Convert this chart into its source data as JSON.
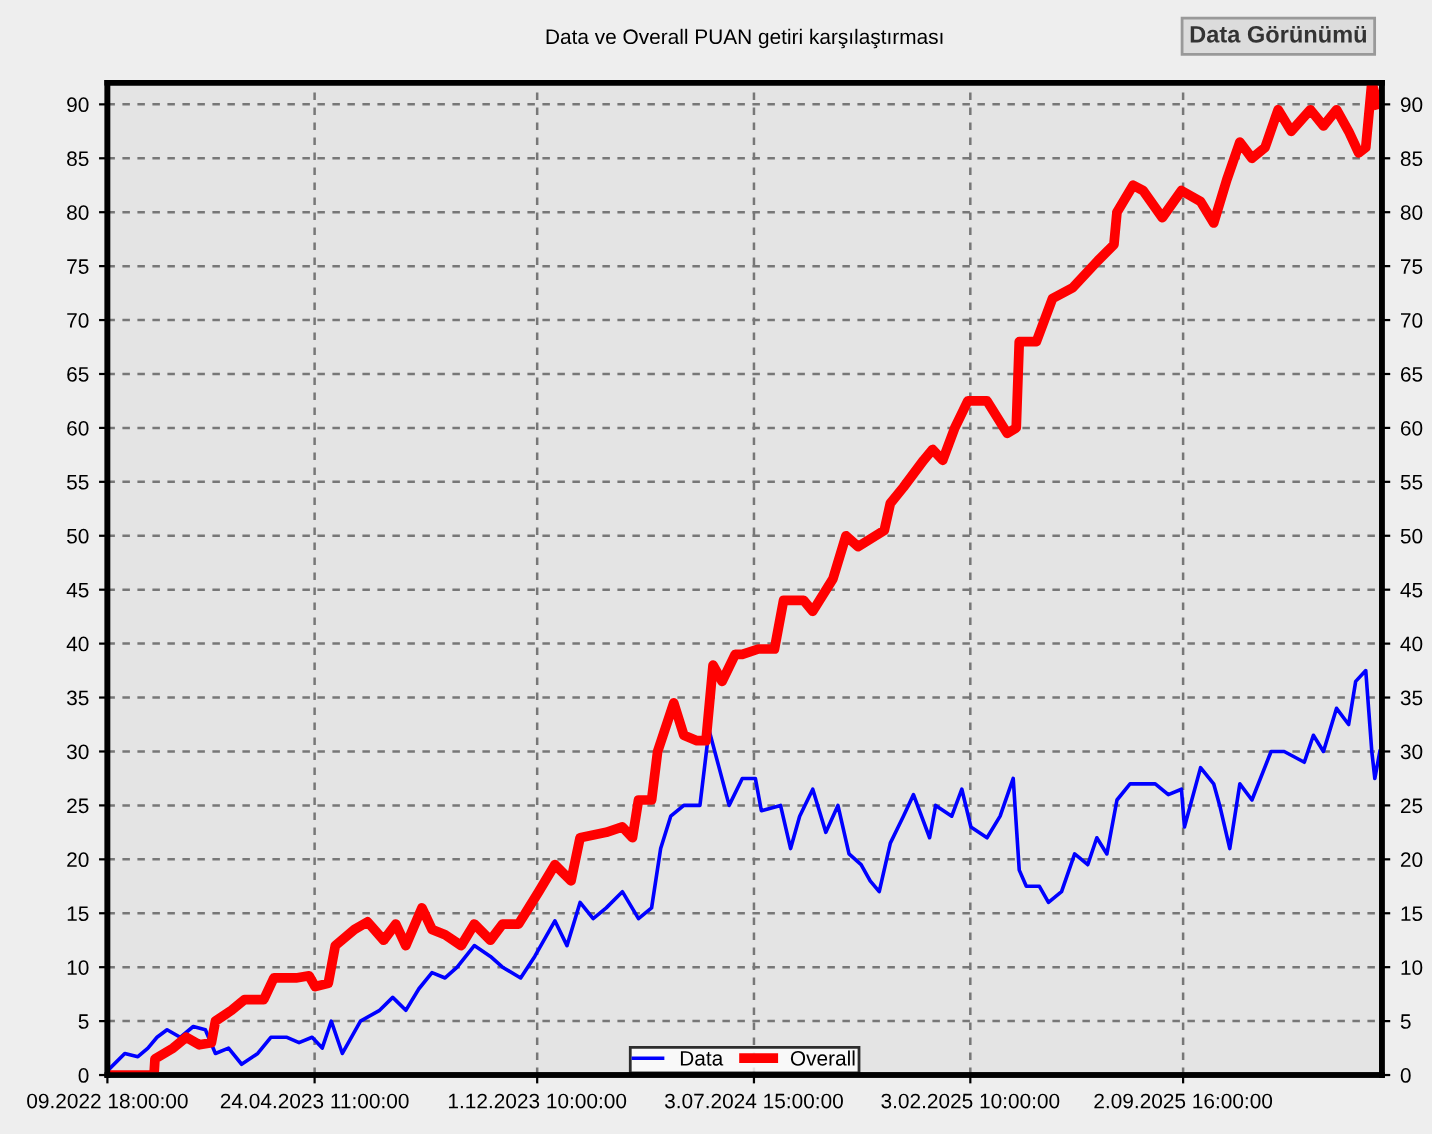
{
  "chart_data": {
    "type": "line",
    "title": "Data ve Overall PUAN getiri karşılaştırması",
    "annotations": [
      "Data Görünümü"
    ],
    "xlim": [
      "2022-09-30T18:00",
      "2026-03-19"
    ],
    "xticks": [
      {
        "value": "2022-09-30T18:00",
        "label": "09.2022 18:00:00"
      },
      {
        "value": "2023-04-24T11:00",
        "label": "24.04.2023 11:00:00"
      },
      {
        "value": "2023-12-01T10:00",
        "label": "1.12.2023 10:00:00"
      },
      {
        "value": "2024-07-03T15:00",
        "label": "3.07.2024 15:00:00"
      },
      {
        "value": "2025-02-03T10:00",
        "label": "3.02.2025 10:00:00"
      },
      {
        "value": "2025-09-02T16:00",
        "label": "2.09.2025 16:00:00"
      }
    ],
    "ylim": [
      0,
      92
    ],
    "yticks": [
      0,
      5,
      10,
      15,
      20,
      25,
      30,
      35,
      40,
      45,
      50,
      55,
      60,
      65,
      70,
      75,
      80,
      85,
      90
    ],
    "y2lim": [
      0,
      92
    ],
    "y2ticks": [
      0,
      5,
      10,
      15,
      20,
      25,
      30,
      35,
      40,
      45,
      50,
      55,
      60,
      65,
      70,
      75,
      80,
      85,
      90
    ],
    "grid": true,
    "legend": "bottom",
    "line_style": "solid",
    "marker": "none",
    "series": [
      {
        "name": "Data",
        "color": "#0000ff",
        "x": [
          "2022-10-02",
          "2022-10-18",
          "2022-10-31",
          "2022-11-10",
          "2022-11-19",
          "2022-11-29",
          "2022-12-12",
          "2022-12-25",
          "2023-01-06",
          "2023-01-16",
          "2023-01-29",
          "2023-02-11",
          "2023-02-27",
          "2023-03-12",
          "2023-03-28",
          "2023-04-09",
          "2023-04-22",
          "2023-05-02",
          "2023-05-11",
          "2023-05-22",
          "2023-06-09",
          "2023-06-28",
          "2023-07-11",
          "2023-07-24",
          "2023-08-06",
          "2023-08-19",
          "2023-09-01",
          "2023-09-13",
          "2023-09-30",
          "2023-10-16",
          "2023-10-28",
          "2023-11-15",
          "2023-11-29",
          "2023-12-19",
          "2023-12-31",
          "2024-01-13",
          "2024-01-26",
          "2024-02-08",
          "2024-02-24",
          "2024-03-11",
          "2024-03-24",
          "2024-04-02",
          "2024-04-12",
          "2024-04-25",
          "2024-05-11",
          "2024-05-20",
          "2024-05-30",
          "2024-06-09",
          "2024-06-22",
          "2024-07-05",
          "2024-07-11",
          "2024-07-30",
          "2024-08-09",
          "2024-08-18",
          "2024-08-31",
          "2024-09-13",
          "2024-09-25",
          "2024-10-06",
          "2024-10-18",
          "2024-10-27",
          "2024-11-05",
          "2024-11-16",
          "2024-11-29",
          "2024-12-09",
          "2024-12-25",
          "2024-12-31",
          "2025-01-16",
          "2025-01-26",
          "2025-02-04",
          "2025-02-20",
          "2025-03-05",
          "2025-03-18",
          "2025-03-24",
          "2025-03-31",
          "2025-04-13",
          "2025-04-22",
          "2025-05-05",
          "2025-05-18",
          "2025-05-31",
          "2025-06-09",
          "2025-06-19",
          "2025-06-29",
          "2025-07-12",
          "2025-08-06",
          "2025-08-19",
          "2025-09-01",
          "2025-09-04",
          "2025-09-20",
          "2025-10-03",
          "2025-10-09",
          "2025-10-19",
          "2025-10-29",
          "2025-11-10",
          "2025-11-29",
          "2025-12-12",
          "2026-01-01",
          "2026-01-10",
          "2026-01-20",
          "2026-02-02",
          "2026-02-14",
          "2026-02-21",
          "2026-03-03",
          "2026-03-09",
          "2026-03-12",
          "2026-03-17"
        ],
        "values": [
          0.5,
          2,
          1.7,
          2.5,
          3.5,
          4.2,
          3.5,
          4.5,
          4.2,
          2,
          2.5,
          1,
          2,
          3.5,
          3.5,
          3,
          3.5,
          2.5,
          5,
          2,
          5,
          6,
          7.2,
          6,
          8,
          9.5,
          9,
          10,
          12,
          11,
          10,
          9,
          11,
          14.3,
          12,
          16,
          14.5,
          15.5,
          17,
          14.5,
          15.5,
          21,
          24,
          25,
          25,
          32,
          28.5,
          25,
          27.5,
          27.5,
          24.5,
          25,
          21,
          24,
          26.5,
          22.5,
          25,
          20.5,
          19.5,
          18,
          17,
          21.5,
          24,
          26,
          22,
          25,
          24,
          26.5,
          23,
          22,
          24,
          27.5,
          19,
          17.5,
          17.5,
          16,
          17,
          20.5,
          19.5,
          22,
          20.5,
          25.5,
          27,
          27,
          26,
          26.5,
          23,
          28.5,
          27,
          25,
          21,
          27,
          25.5,
          30,
          30,
          29,
          31.5,
          30,
          34,
          32.5,
          36.5,
          37.5,
          30,
          27.5,
          30
        ]
      },
      {
        "name": "Overall",
        "color": "#ff0000",
        "x": [
          "2022-10-01",
          "2022-11-16",
          "2022-11-17",
          "2022-12-05",
          "2022-12-18",
          "2022-12-31",
          "2023-01-12",
          "2023-01-16",
          "2023-02-01",
          "2023-02-14",
          "2023-03-05",
          "2023-03-15",
          "2023-04-06",
          "2023-04-19",
          "2023-04-25",
          "2023-05-08",
          "2023-05-15",
          "2023-06-03",
          "2023-06-16",
          "2023-07-02",
          "2023-07-14",
          "2023-07-24",
          "2023-08-09",
          "2023-08-19",
          "2023-09-01",
          "2023-09-17",
          "2023-09-30",
          "2023-10-16",
          "2023-10-28",
          "2023-11-13",
          "2023-12-03",
          "2023-12-19",
          "2024-01-04",
          "2024-01-13",
          "2024-02-08",
          "2024-02-24",
          "2024-03-05",
          "2024-03-11",
          "2024-03-24",
          "2024-03-30",
          "2024-04-15",
          "2024-04-25",
          "2024-05-08",
          "2024-05-17",
          "2024-05-24",
          "2024-06-02",
          "2024-06-15",
          "2024-06-22",
          "2024-07-08",
          "2024-07-24",
          "2024-08-02",
          "2024-08-22",
          "2024-08-31",
          "2024-09-20",
          "2024-10-03",
          "2024-10-15",
          "2024-11-10",
          "2024-11-16",
          "2024-11-29",
          "2024-12-19",
          "2024-12-28",
          "2025-01-07",
          "2025-01-19",
          "2025-02-01",
          "2025-02-20",
          "2025-03-12",
          "2025-03-21",
          "2025-03-24",
          "2025-04-10",
          "2025-04-26",
          "2025-05-16",
          "2025-06-10",
          "2025-06-26",
          "2025-06-29",
          "2025-07-15",
          "2025-07-25",
          "2025-08-13",
          "2025-09-01",
          "2025-09-20",
          "2025-10-03",
          "2025-10-16",
          "2025-10-29",
          "2025-11-10",
          "2025-11-23",
          "2025-12-06",
          "2025-12-19",
          "2026-01-07",
          "2026-01-20",
          "2026-02-02",
          "2026-02-14",
          "2026-02-24",
          "2026-03-03",
          "2026-03-09",
          "2026-03-15"
        ],
        "values": [
          0,
          0,
          1.5,
          2.5,
          3.5,
          2.8,
          3,
          5,
          6,
          7,
          7,
          9,
          9,
          9.2,
          8.2,
          8.5,
          12,
          13.5,
          14.2,
          12.5,
          14,
          12,
          15.5,
          13.5,
          13,
          12,
          14,
          12.5,
          14,
          14,
          17,
          19.5,
          18,
          22,
          22.5,
          23,
          22,
          25.5,
          25.5,
          30,
          34.5,
          31.5,
          31,
          31,
          38,
          36.5,
          39,
          39,
          39.5,
          39.5,
          44,
          44,
          43,
          46,
          50,
          49,
          50.5,
          53,
          54.5,
          57,
          58,
          57,
          60,
          62.5,
          62.5,
          59.5,
          60,
          68,
          68,
          72,
          73,
          75.5,
          77,
          80,
          82.5,
          82,
          79.5,
          82,
          81,
          79,
          83,
          86.5,
          85,
          86,
          89.5,
          87.5,
          89.5,
          88,
          89.5,
          87.5,
          85.5,
          86,
          92,
          90
        ]
      }
    ]
  }
}
